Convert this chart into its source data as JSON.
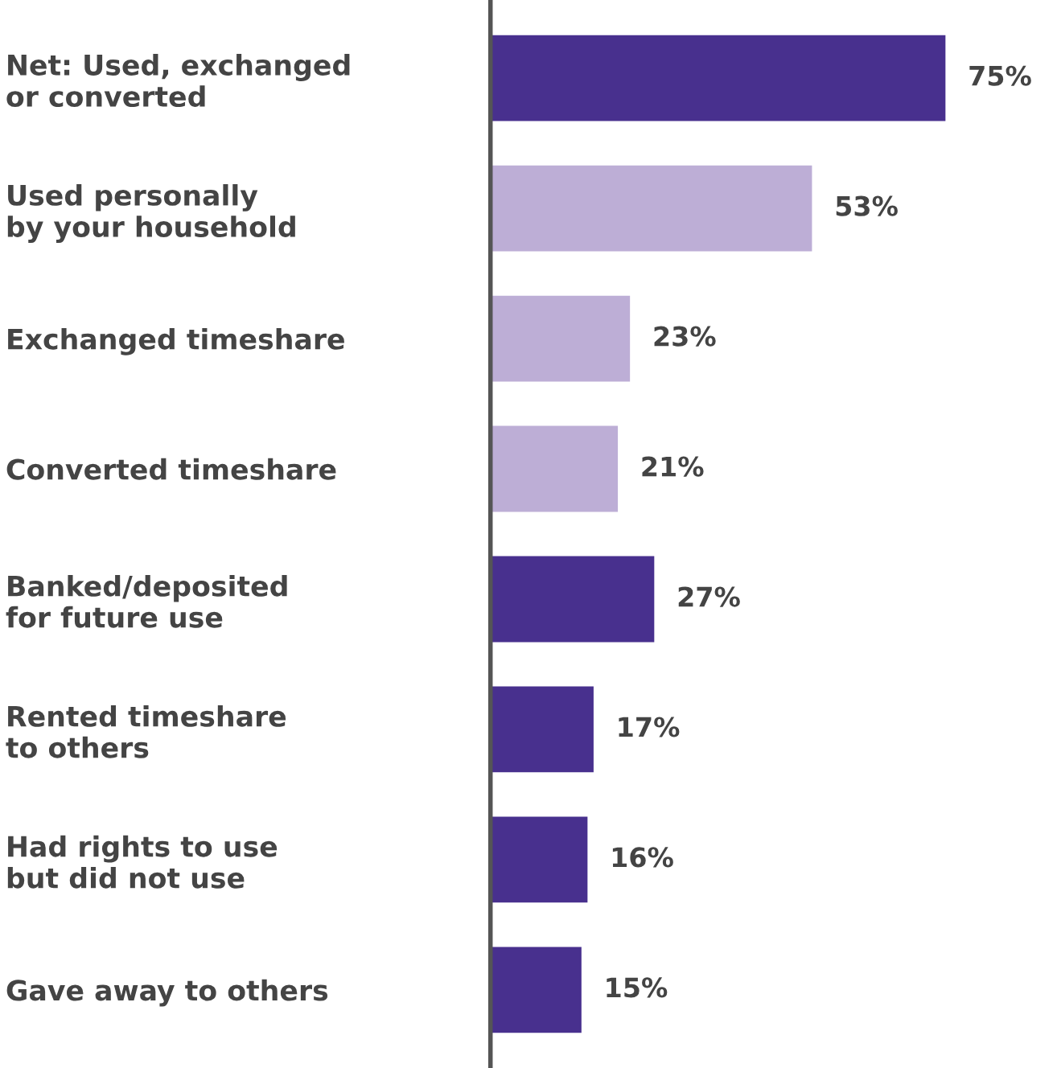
{
  "chart_data": {
    "type": "bar",
    "orientation": "horizontal",
    "categories": [
      "Net: Used, exchanged\nor converted",
      "Used personally\nby your household",
      "Exchanged timeshare",
      "Converted timeshare",
      "Banked/deposited\nfor future use",
      "Rented timeshare\nto others",
      "Had rights to use\nbut did not use",
      "Gave away to others"
    ],
    "values": [
      75,
      53,
      23,
      21,
      27,
      17,
      16,
      15
    ],
    "colors": [
      "#48308e",
      "#bdaed6",
      "#bdaed6",
      "#bdaed6",
      "#48308e",
      "#48308e",
      "#48308e",
      "#48308e"
    ],
    "value_labels": [
      "75%",
      "53%",
      "23%",
      "21%",
      "27%",
      "17%",
      "16%",
      "15%"
    ],
    "tick_labels": "y",
    "grid": false,
    "legend": false
  }
}
